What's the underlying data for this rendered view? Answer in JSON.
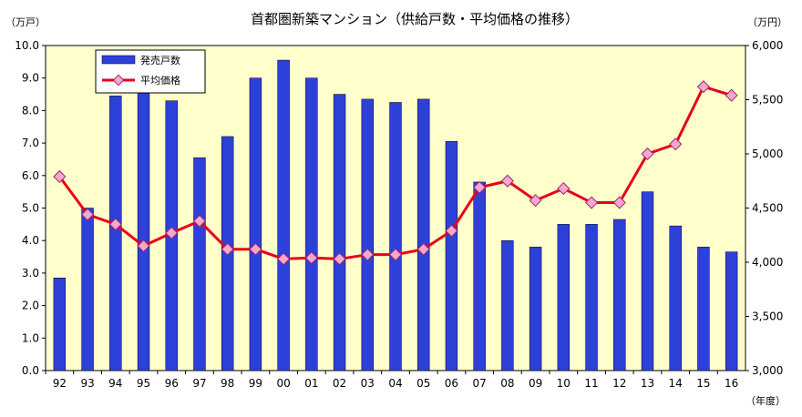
{
  "chart_data": {
    "type": "bar",
    "title": "首都圏新築マンション（供給戸数・平均価格の推移）",
    "y_left_unit": "（万戸）",
    "y_right_unit": "（万円）",
    "x_unit": "（年度）",
    "categories": [
      "92",
      "93",
      "94",
      "95",
      "96",
      "97",
      "98",
      "99",
      "00",
      "01",
      "02",
      "03",
      "04",
      "05",
      "06",
      "07",
      "08",
      "09",
      "10",
      "11",
      "12",
      "13",
      "14",
      "15",
      "16"
    ],
    "series": [
      {
        "name": "発売戸数",
        "type": "bar",
        "axis": "left",
        "color": "#2d41d9",
        "values": [
          2.85,
          5.0,
          8.45,
          8.55,
          8.3,
          6.55,
          7.2,
          9.0,
          9.55,
          9.0,
          8.5,
          8.35,
          8.25,
          8.35,
          7.05,
          5.8,
          4.0,
          3.8,
          4.5,
          4.5,
          4.65,
          5.5,
          4.45,
          3.8,
          3.65
        ]
      },
      {
        "name": "平均価格",
        "type": "line",
        "axis": "right",
        "color": "#e8001a",
        "marker_color": "#f7a6cf",
        "values": [
          4790,
          4440,
          4350,
          4150,
          4270,
          4380,
          4120,
          4120,
          4030,
          4040,
          4030,
          4070,
          4070,
          4120,
          4290,
          4690,
          4750,
          4570,
          4680,
          4550,
          4550,
          5000,
          5090,
          5620,
          5540
        ]
      }
    ],
    "y_left": {
      "min": 0,
      "max": 10,
      "step": 1,
      "tick_labels": [
        "0.0",
        "1.0",
        "2.0",
        "3.0",
        "4.0",
        "5.0",
        "6.0",
        "7.0",
        "8.0",
        "9.0",
        "10.0"
      ]
    },
    "y_right": {
      "min": 3000,
      "max": 6000,
      "step": 500,
      "tick_labels": [
        "3,000",
        "3,500",
        "4,000",
        "4,500",
        "5,000",
        "5,500",
        "6,000"
      ]
    },
    "legend": {
      "position": "top-left"
    },
    "plot_background": "#ffffcc",
    "grid": false
  }
}
